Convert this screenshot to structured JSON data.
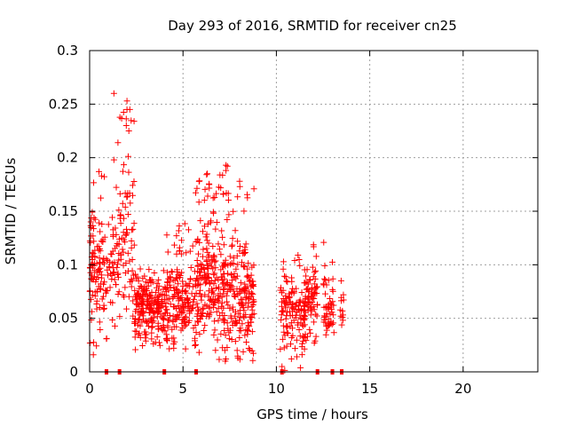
{
  "chart_data": {
    "type": "scatter",
    "title": "Day 293 of 2016, SRMTID for receiver cn25",
    "xlabel": "GPS time / hours",
    "ylabel": "SRMTID / TECUs",
    "xlim": [
      0,
      24
    ],
    "ylim": [
      0,
      0.3
    ],
    "grid": true,
    "marker": "+",
    "color": "#ff0000",
    "x_ticks": [
      0,
      5,
      10,
      15,
      20
    ],
    "x_tick_labels": [
      "0",
      "5",
      "10",
      "15",
      "20"
    ],
    "y_ticks": [
      0,
      0.05,
      0.1,
      0.15,
      0.2,
      0.25,
      0.3
    ],
    "y_tick_labels": [
      "0",
      "0.05",
      "0.1",
      "0.15",
      "0.2",
      "0.25",
      "0.3"
    ],
    "zero_markers_x": [
      0.9,
      1.6,
      4.0,
      5.7,
      10.3,
      12.2,
      13.0,
      13.5
    ],
    "clusters": [
      {
        "x0": 0.0,
        "x1": 0.7,
        "y0": 0.02,
        "y1": 0.19,
        "n": 90,
        "mean": 0.1
      },
      {
        "x0": 0.7,
        "x1": 1.5,
        "y0": 0.03,
        "y1": 0.2,
        "n": 60,
        "mean": 0.09
      },
      {
        "x0": 1.5,
        "x1": 2.4,
        "y0": 0.04,
        "y1": 0.255,
        "n": 80,
        "mean": 0.12
      },
      {
        "x0": 2.4,
        "x1": 4.0,
        "y0": 0.02,
        "y1": 0.1,
        "n": 200,
        "mean": 0.06
      },
      {
        "x0": 4.0,
        "x1": 5.6,
        "y0": 0.02,
        "y1": 0.14,
        "n": 170,
        "mean": 0.065
      },
      {
        "x0": 5.6,
        "x1": 7.2,
        "y0": 0.01,
        "y1": 0.185,
        "n": 220,
        "mean": 0.08
      },
      {
        "x0": 7.2,
        "x1": 8.8,
        "y0": 0.01,
        "y1": 0.195,
        "n": 200,
        "mean": 0.07
      },
      {
        "x0": 10.2,
        "x1": 11.6,
        "y0": 0.0,
        "y1": 0.11,
        "n": 140,
        "mean": 0.055
      },
      {
        "x0": 11.6,
        "x1": 12.2,
        "y0": 0.02,
        "y1": 0.12,
        "n": 60,
        "mean": 0.07
      },
      {
        "x0": 12.5,
        "x1": 13.1,
        "y0": 0.03,
        "y1": 0.125,
        "n": 50,
        "mean": 0.065
      },
      {
        "x0": 13.4,
        "x1": 13.6,
        "y0": 0.04,
        "y1": 0.09,
        "n": 12,
        "mean": 0.06
      }
    ],
    "highlight_points": [
      {
        "x": 1.3,
        "y": 0.26
      },
      {
        "x": 2.0,
        "y": 0.253
      },
      {
        "x": 2.0,
        "y": 0.245
      },
      {
        "x": 2.1,
        "y": 0.225
      },
      {
        "x": 7.3,
        "y": 0.193
      },
      {
        "x": 7.3,
        "y": 0.188
      },
      {
        "x": 6.3,
        "y": 0.185
      },
      {
        "x": 0.5,
        "y": 0.187
      },
      {
        "x": 1.3,
        "y": 0.198
      },
      {
        "x": 0.2,
        "y": 0.016
      },
      {
        "x": 10.3,
        "y": 0.005
      },
      {
        "x": 7.3,
        "y": 0.012
      }
    ]
  }
}
